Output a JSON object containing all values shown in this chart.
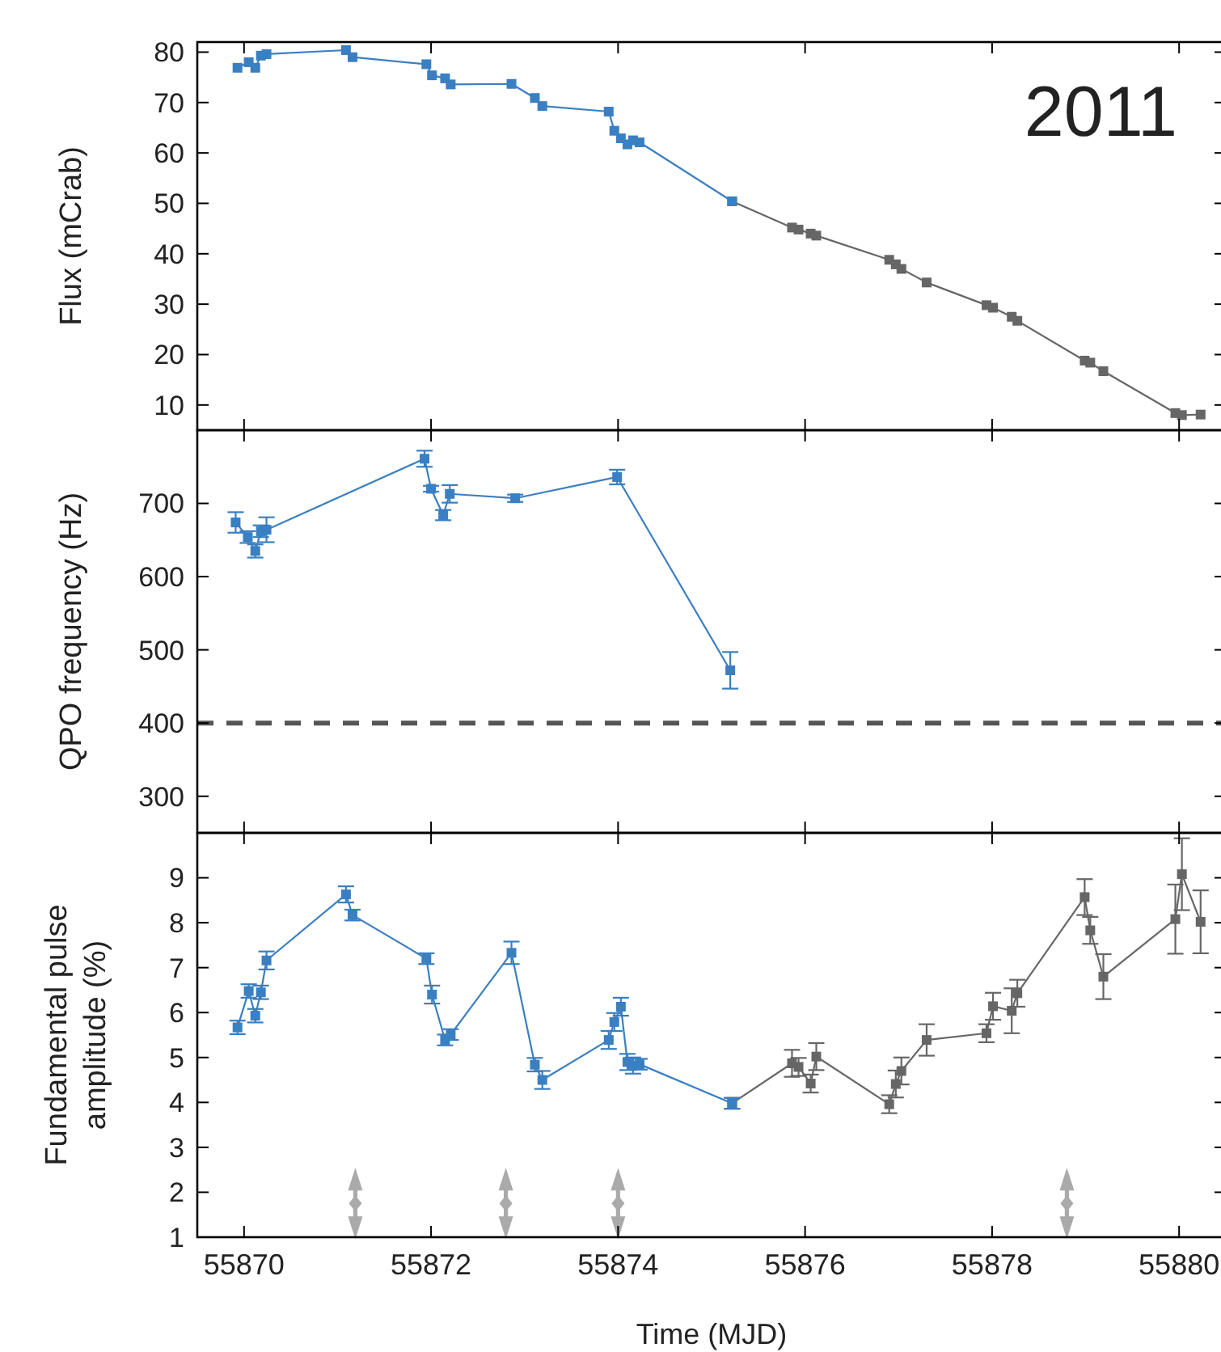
{
  "chart_data": [
    {
      "type": "line",
      "ylabel": "Flux (mCrab)",
      "xlim": [
        55869.5,
        55880.5
      ],
      "xticks": [
        55870,
        55872,
        55874,
        55876,
        55878,
        55880
      ],
      "ylim": [
        5,
        82
      ],
      "yticks": [
        10,
        20,
        30,
        40,
        50,
        60,
        70,
        80
      ],
      "tick_labels": "y",
      "marker": "square",
      "grid": false,
      "annotations": [
        "2011"
      ],
      "series": [
        {
          "color": "#666666",
          "x": [
            55875.22,
            55875.86,
            55875.93,
            55876.06,
            55876.12,
            55876.9,
            55876.97,
            55877.03,
            55877.3,
            55877.94,
            55878.01,
            55878.21,
            55878.27,
            55878.99,
            55879.05,
            55879.19,
            55879.96,
            55880.03,
            55880.23
          ],
          "values": [
            50.4,
            45.2,
            44.8,
            44.0,
            43.6,
            38.8,
            37.9,
            37.0,
            34.3,
            29.8,
            29.3,
            27.5,
            26.7,
            18.8,
            18.4,
            16.7,
            8.4,
            8.0,
            8.1
          ]
        },
        {
          "color": "#3a7fc1",
          "x": [
            55869.93,
            55870.05,
            55870.12,
            55870.18,
            55870.24,
            55871.09,
            55871.16,
            55871.95,
            55872.01,
            55872.15,
            55872.21,
            55872.86,
            55873.11,
            55873.19,
            55873.9,
            55873.96,
            55874.03,
            55874.1,
            55874.16,
            55874.23,
            55875.22
          ],
          "values": [
            76.9,
            78.0,
            76.9,
            79.3,
            79.6,
            80.4,
            79.0,
            77.6,
            75.4,
            74.8,
            73.6,
            73.7,
            70.9,
            69.3,
            68.2,
            64.4,
            62.9,
            61.7,
            62.5,
            62.1,
            50.4
          ]
        }
      ]
    },
    {
      "type": "line",
      "ylabel": "QPO frequency (Hz)",
      "xlim": [
        55869.5,
        55880.5
      ],
      "xticks": [
        55870,
        55872,
        55874,
        55876,
        55878,
        55880
      ],
      "ylim": [
        250,
        800
      ],
      "yticks": [
        300,
        400,
        500,
        600,
        700
      ],
      "tick_labels": "y",
      "marker": "square",
      "grid": false,
      "ref_lines": [
        {
          "axis": "y",
          "value": 400,
          "color": "#555555",
          "line_style": "dashed"
        }
      ],
      "series": [
        {
          "color": "#3a7fc1",
          "x": [
            55869.91,
            55870.04,
            55870.12,
            55870.18,
            55870.24,
            55871.93,
            55872.0,
            55872.13,
            55872.2,
            55872.9,
            55873.99,
            55875.2
          ],
          "values": [
            674,
            654,
            635,
            662,
            664,
            761,
            720,
            684,
            713,
            707,
            736,
            472
          ],
          "errors": [
            14,
            8,
            9,
            8,
            17,
            11,
            4,
            7,
            12,
            5,
            10,
            25
          ]
        }
      ]
    },
    {
      "type": "line",
      "ylabel": "Fundamental pulse amplitude (%)",
      "xlabel": "Time (MJD)",
      "xlim": [
        55869.5,
        55880.5
      ],
      "xticks": [
        55870,
        55872,
        55874,
        55876,
        55878,
        55880
      ],
      "ylim": [
        1,
        10
      ],
      "yticks": [
        1,
        2,
        3,
        4,
        5,
        6,
        7,
        8,
        9
      ],
      "marker": "square",
      "grid": false,
      "series": [
        {
          "type": "scatter",
          "marker": "diamond",
          "color": "#aaaaaa",
          "x": [
            55871.19,
            55872.8,
            55874.0,
            55878.8
          ],
          "values": [
            1.75,
            1.75,
            1.75,
            1.75
          ]
        },
        {
          "color": "#666666",
          "x": [
            55875.22,
            55875.86,
            55875.93,
            55876.06,
            55876.12,
            55876.9,
            55876.97,
            55877.03,
            55877.3,
            55877.94,
            55878.01,
            55878.21,
            55878.27,
            55878.99,
            55879.05,
            55879.19,
            55879.96,
            55880.03,
            55880.23
          ],
          "values": [
            3.98,
            4.87,
            4.79,
            4.42,
            5.02,
            3.96,
            4.41,
            4.7,
            5.39,
            5.54,
            6.14,
            6.04,
            6.43,
            8.57,
            7.83,
            6.8,
            8.08,
            9.08,
            8.02
          ],
          "errors": [
            0.12,
            0.3,
            0.2,
            0.2,
            0.3,
            0.2,
            0.3,
            0.3,
            0.35,
            0.2,
            0.3,
            0.5,
            0.3,
            0.4,
            0.3,
            0.5,
            0.77,
            0.8,
            0.7
          ]
        },
        {
          "color": "#3a7fc1",
          "x": [
            55869.93,
            55870.05,
            55870.12,
            55870.18,
            55870.24,
            55871.09,
            55871.16,
            55871.95,
            55872.01,
            55872.15,
            55872.21,
            55872.86,
            55873.11,
            55873.19,
            55873.9,
            55873.96,
            55874.03,
            55874.1,
            55874.16,
            55874.23,
            55875.22
          ],
          "values": [
            5.67,
            6.48,
            5.93,
            6.45,
            7.16,
            8.63,
            8.17,
            7.2,
            6.4,
            5.39,
            5.51,
            7.33,
            4.84,
            4.5,
            5.39,
            5.79,
            6.13,
            4.9,
            4.82,
            4.85,
            3.98
          ],
          "errors": [
            0.15,
            0.15,
            0.15,
            0.15,
            0.2,
            0.18,
            0.12,
            0.12,
            0.2,
            0.12,
            0.12,
            0.25,
            0.15,
            0.2,
            0.2,
            0.2,
            0.2,
            0.18,
            0.18,
            0.12,
            0.12
          ]
        }
      ]
    }
  ]
}
